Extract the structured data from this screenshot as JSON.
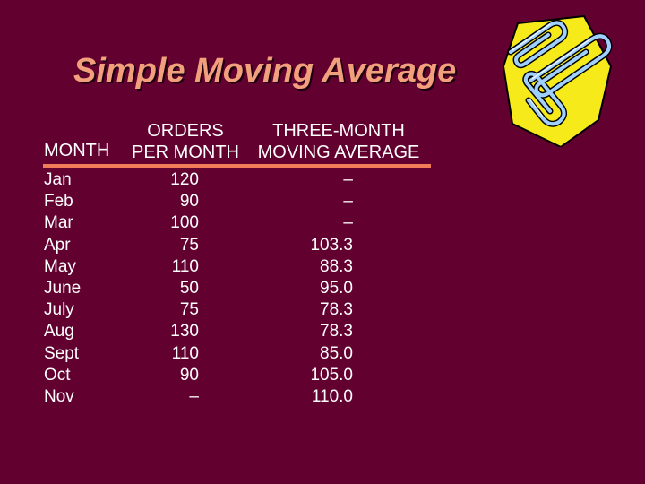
{
  "slide": {
    "title": "Simple Moving Average"
  },
  "table": {
    "headers": {
      "month": "MONTH",
      "orders_line1": "ORDERS",
      "orders_line2": "PER MONTH",
      "avg_line1": "THREE-MONTH",
      "avg_line2": "MOVING AVERAGE"
    },
    "rows": [
      {
        "month": "Jan",
        "orders": "120",
        "avg": "–"
      },
      {
        "month": "Feb",
        "orders": "90",
        "avg": "–"
      },
      {
        "month": "Mar",
        "orders": "100",
        "avg": "–"
      },
      {
        "month": "Apr",
        "orders": "75",
        "avg": "103.3"
      },
      {
        "month": "May",
        "orders": "110",
        "avg": "88.3"
      },
      {
        "month": "June",
        "orders": "50",
        "avg": "95.0"
      },
      {
        "month": "July",
        "orders": "75",
        "avg": "78.3"
      },
      {
        "month": "Aug",
        "orders": "130",
        "avg": "78.3"
      },
      {
        "month": "Sept",
        "orders": "110",
        "avg": "85.0"
      },
      {
        "month": "Oct",
        "orders": "90",
        "avg": "105.0"
      },
      {
        "month": "Nov",
        "orders": "–",
        "avg": "110.0"
      }
    ]
  },
  "colors": {
    "background": "#62002f",
    "title": "#f2a07c",
    "rule": "#f07c5a"
  },
  "icons": {
    "clip_art": "paperclips-icon"
  }
}
